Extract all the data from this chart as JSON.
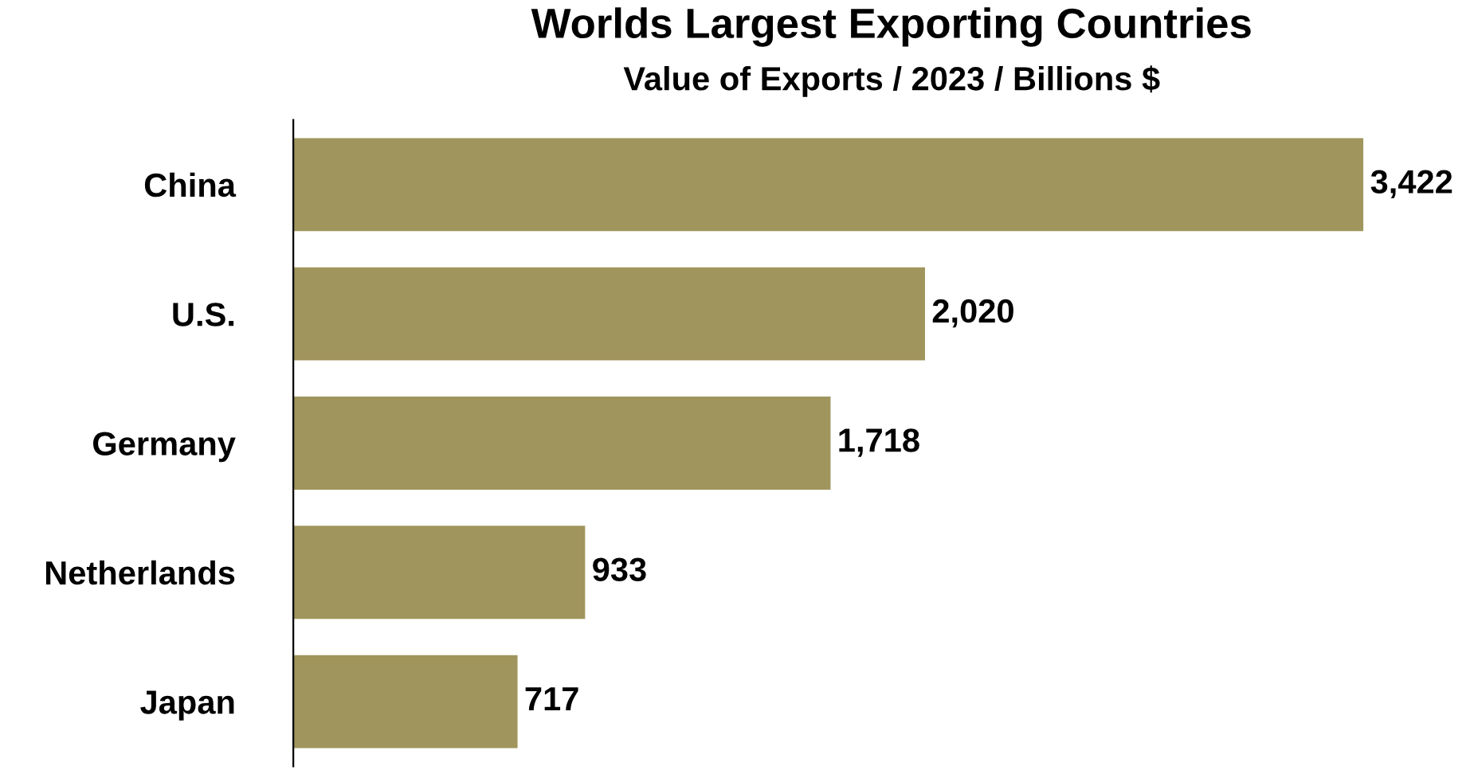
{
  "chart_data": {
    "type": "bar",
    "orientation": "horizontal",
    "title": "Worlds Largest Exporting Countries",
    "subtitle": "Value of Exports / 2023 / Billions $",
    "categories": [
      "China",
      "U.S.",
      "Germany",
      "Netherlands",
      "Japan"
    ],
    "values": [
      3422,
      2020,
      1718,
      933,
      717
    ],
    "value_labels": [
      "3,422",
      "2,020",
      "1,718",
      "933",
      "717"
    ],
    "color": "#a0955c",
    "grid": false,
    "legend": false
  }
}
